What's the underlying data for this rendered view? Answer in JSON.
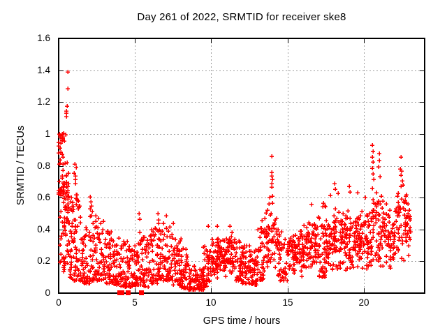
{
  "chart_data": {
    "type": "scatter",
    "title": "Day 261 of 2022, SRMTID for receiver ske8",
    "xlabel": "GPS time / hours",
    "ylabel": "SRMTID / TECUs",
    "xlim": [
      0,
      24
    ],
    "ylim": [
      0,
      1.6
    ],
    "xticks": [
      {
        "v": 0,
        "label": "0"
      },
      {
        "v": 5,
        "label": "5"
      },
      {
        "v": 10,
        "label": "10"
      },
      {
        "v": 15,
        "label": "15"
      },
      {
        "v": 20,
        "label": "20"
      }
    ],
    "yticks": [
      {
        "v": 0.0,
        "label": "0"
      },
      {
        "v": 0.2,
        "label": "0.2"
      },
      {
        "v": 0.4,
        "label": "0.4"
      },
      {
        "v": 0.6,
        "label": "0.6"
      },
      {
        "v": 0.8,
        "label": "0.8"
      },
      {
        "v": 1.0,
        "label": "1"
      },
      {
        "v": 1.2,
        "label": "1.2"
      },
      {
        "v": 1.4,
        "label": "1.4"
      },
      {
        "v": 1.6,
        "label": "1.6"
      }
    ],
    "grid": true,
    "legend": "none",
    "colors": {
      "marker": "#ff0000",
      "frame": "#000000",
      "grid": "#9c9c9c",
      "background": "#ffffff",
      "text": "#000000"
    },
    "marker": {
      "glyph": "plus",
      "size": 7,
      "stroke_width": 1.5
    },
    "seed": 261,
    "series": [
      {
        "name": "SRMTID",
        "representation": "density-envelope",
        "bins_format": [
          "hour_start",
          "hour_end",
          "value_low",
          "value_high",
          "n_points",
          "bias(l=low,m=mid,h=high)"
        ],
        "bins": [
          [
            0.0,
            0.3,
            0.3,
            1.0,
            40,
            "h"
          ],
          [
            0.0,
            0.35,
            0.6,
            0.68,
            12,
            "m"
          ],
          [
            0.05,
            0.45,
            0.1,
            0.32,
            14,
            "m"
          ],
          [
            0.3,
            0.7,
            0.12,
            0.95,
            55,
            "m"
          ],
          [
            0.7,
            1.0,
            0.08,
            0.6,
            35,
            "l"
          ],
          [
            1.0,
            1.5,
            0.08,
            0.62,
            50,
            "l"
          ],
          [
            1.5,
            2.0,
            0.06,
            0.45,
            45,
            "l"
          ],
          [
            2.0,
            2.5,
            0.08,
            0.52,
            45,
            "l"
          ],
          [
            2.5,
            3.0,
            0.08,
            0.5,
            42,
            "l"
          ],
          [
            3.0,
            3.5,
            0.06,
            0.4,
            42,
            "l"
          ],
          [
            3.5,
            4.0,
            0.05,
            0.35,
            42,
            "l"
          ],
          [
            4.0,
            4.5,
            0.04,
            0.33,
            42,
            "l"
          ],
          [
            4.5,
            5.0,
            0.04,
            0.3,
            40,
            "l"
          ],
          [
            5.0,
            5.5,
            0.05,
            0.4,
            40,
            "l"
          ],
          [
            5.5,
            6.0,
            0.04,
            0.35,
            40,
            "l"
          ],
          [
            6.0,
            6.5,
            0.06,
            0.42,
            42,
            "l"
          ],
          [
            6.5,
            7.0,
            0.08,
            0.45,
            42,
            "l"
          ],
          [
            7.0,
            7.5,
            0.08,
            0.42,
            42,
            "l"
          ],
          [
            7.5,
            8.0,
            0.05,
            0.35,
            42,
            "l"
          ],
          [
            8.0,
            8.5,
            0.03,
            0.28,
            42,
            "l"
          ],
          [
            8.5,
            9.0,
            0.02,
            0.18,
            42,
            "l"
          ],
          [
            9.0,
            9.5,
            0.02,
            0.16,
            45,
            "l"
          ],
          [
            9.5,
            10.0,
            0.04,
            0.3,
            42,
            "l"
          ],
          [
            10.0,
            10.5,
            0.08,
            0.38,
            42,
            "m"
          ],
          [
            10.5,
            11.0,
            0.1,
            0.36,
            42,
            "m"
          ],
          [
            11.0,
            11.5,
            0.1,
            0.4,
            42,
            "m"
          ],
          [
            11.5,
            12.0,
            0.08,
            0.34,
            40,
            "l"
          ],
          [
            12.0,
            12.5,
            0.06,
            0.3,
            45,
            "l"
          ],
          [
            12.5,
            13.0,
            0.05,
            0.28,
            45,
            "l"
          ],
          [
            13.0,
            13.5,
            0.08,
            0.42,
            40,
            "l"
          ],
          [
            13.5,
            14.0,
            0.12,
            0.58,
            38,
            "m"
          ],
          [
            14.0,
            14.4,
            0.15,
            0.55,
            25,
            "m"
          ],
          [
            14.4,
            15.0,
            0.08,
            0.4,
            45,
            "l"
          ],
          [
            15.0,
            15.5,
            0.1,
            0.4,
            42,
            "m"
          ],
          [
            15.5,
            16.0,
            0.1,
            0.42,
            42,
            "m"
          ],
          [
            16.0,
            16.5,
            0.1,
            0.48,
            42,
            "m"
          ],
          [
            16.5,
            17.0,
            0.12,
            0.5,
            42,
            "m"
          ],
          [
            17.0,
            17.5,
            0.1,
            0.55,
            42,
            "l"
          ],
          [
            17.5,
            18.0,
            0.1,
            0.52,
            42,
            "m"
          ],
          [
            18.0,
            18.5,
            0.12,
            0.55,
            42,
            "m"
          ],
          [
            18.5,
            19.0,
            0.1,
            0.58,
            42,
            "m"
          ],
          [
            19.0,
            19.5,
            0.12,
            0.52,
            42,
            "m"
          ],
          [
            19.5,
            20.0,
            0.1,
            0.55,
            42,
            "m"
          ],
          [
            20.0,
            20.5,
            0.12,
            0.55,
            40,
            "m"
          ],
          [
            20.5,
            21.0,
            0.15,
            0.7,
            40,
            "m"
          ],
          [
            21.0,
            21.5,
            0.12,
            0.65,
            38,
            "m"
          ],
          [
            21.5,
            22.0,
            0.1,
            0.55,
            38,
            "m"
          ],
          [
            22.0,
            22.5,
            0.15,
            0.72,
            36,
            "m"
          ],
          [
            22.5,
            23.0,
            0.18,
            0.7,
            34,
            "m"
          ],
          [
            23.0,
            23.1,
            0.3,
            0.55,
            8,
            "m"
          ]
        ],
        "outliers": [
          [
            0.58,
            1.39
          ],
          [
            0.61,
            1.285
          ],
          [
            0.54,
            1.175
          ],
          [
            0.5,
            1.145
          ],
          [
            0.52,
            1.13
          ],
          [
            0.5,
            1.11
          ],
          [
            0.3,
            1.005
          ],
          [
            0.45,
            0.995
          ],
          [
            0.1,
            0.98
          ],
          [
            0.22,
            0.965
          ],
          [
            0.38,
            0.955
          ],
          [
            1.05,
            0.81
          ],
          [
            1.15,
            0.79
          ],
          [
            1.02,
            0.755
          ],
          [
            1.1,
            0.735
          ],
          [
            1.08,
            0.715
          ],
          [
            1.12,
            0.69
          ],
          [
            1.2,
            0.62
          ],
          [
            1.22,
            0.585
          ],
          [
            2.05,
            0.605
          ],
          [
            2.1,
            0.575
          ],
          [
            2.15,
            0.55
          ],
          [
            2.08,
            0.53
          ],
          [
            2.2,
            0.515
          ],
          [
            5.28,
            0.5
          ],
          [
            5.3,
            0.465
          ],
          [
            6.5,
            0.5
          ],
          [
            6.53,
            0.46
          ],
          [
            6.56,
            0.44
          ],
          [
            7.05,
            0.485
          ],
          [
            7.5,
            0.44
          ],
          [
            9.8,
            0.42
          ],
          [
            10.4,
            0.42
          ],
          [
            11.2,
            0.42
          ],
          [
            13.35,
            0.455
          ],
          [
            13.5,
            0.47
          ],
          [
            13.7,
            0.52
          ],
          [
            13.8,
            0.56
          ],
          [
            13.85,
            0.6
          ],
          [
            13.95,
            0.86
          ],
          [
            13.96,
            0.76
          ],
          [
            13.98,
            0.735
          ],
          [
            14.0,
            0.715
          ],
          [
            13.97,
            0.69
          ],
          [
            13.99,
            0.665
          ],
          [
            14.02,
            0.61
          ],
          [
            14.0,
            0.565
          ],
          [
            16.6,
            0.555
          ],
          [
            17.35,
            0.565
          ],
          [
            17.8,
            0.615
          ],
          [
            18.1,
            0.69
          ],
          [
            18.15,
            0.655
          ],
          [
            18.3,
            0.625
          ],
          [
            19.05,
            0.67
          ],
          [
            19.1,
            0.635
          ],
          [
            19.6,
            0.63
          ],
          [
            20.1,
            0.6
          ],
          [
            20.55,
            0.93
          ],
          [
            20.6,
            0.89
          ],
          [
            20.57,
            0.855
          ],
          [
            20.62,
            0.825
          ],
          [
            20.58,
            0.785
          ],
          [
            20.6,
            0.75
          ],
          [
            20.65,
            0.715
          ],
          [
            21.0,
            0.875
          ],
          [
            21.02,
            0.835
          ],
          [
            20.98,
            0.795
          ],
          [
            21.05,
            0.73
          ],
          [
            22.45,
            0.855
          ],
          [
            22.4,
            0.78
          ],
          [
            22.5,
            0.765
          ],
          [
            22.42,
            0.74
          ],
          [
            22.55,
            0.705
          ],
          [
            22.6,
            0.68
          ],
          [
            23.0,
            0.52
          ],
          [
            23.02,
            0.46
          ],
          [
            23.05,
            0.41
          ]
        ],
        "zero_square_hours": [
          4.0,
          4.1,
          4.55,
          5.4
        ]
      }
    ]
  }
}
